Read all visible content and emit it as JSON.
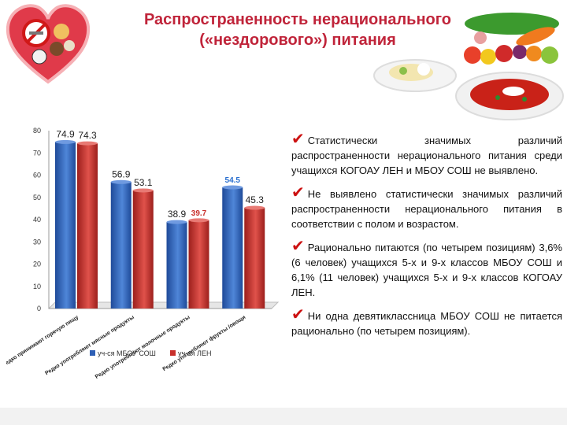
{
  "title": {
    "line1": "Распространенность нерационального",
    "line2": "(«нездорового») питания"
  },
  "colors": {
    "title": "#c0243a",
    "series_blue": "#2e5fb5",
    "series_red": "#c8302c",
    "check": "#cc1111"
  },
  "icons": [
    "heart-food-icon",
    "no-smoking-icon",
    "vegetables-icon",
    "salad-plate-icon",
    "soup-bowl-icon"
  ],
  "bullets": [
    {
      "check": "✔",
      "text": "Статистически значимых различий распространенности нерационального питания среди учащихся КОГОАУ ЛЕН и МБОУ СОШ не выявлено."
    },
    {
      "check": "✔",
      "text": "Не выявлено статистически значимых различий распространенности нерационального питания в соответствии с полом и возрастом."
    },
    {
      "check": "✔",
      "text": "Рационально питаются (по четырем позициям) 3,6% (6 человек) учащихся 5-х и 9-х классов МБОУ СОШ и 6,1% (11 человек) учащихся 5-х и 9-х классов КОГОАУ ЛЕН."
    },
    {
      "check": "✔",
      "text": "Ни одна девятиклассница МБОУ СОШ не питается рационально (по четырем позициям)."
    }
  ],
  "chart_data": {
    "type": "bar",
    "categories": [
      "Редко принимают горячую пищу",
      "Редко употребляют мясные продукты",
      "Редко употребляют молочные продукты",
      "Редко употребляют фрукты /овощи"
    ],
    "series": [
      {
        "name": "уч-ся МБОУ СОШ",
        "values": [
          74.9,
          56.9,
          38.9,
          54.5
        ],
        "labels": [
          "74.9",
          "56.9",
          "38.9",
          "54.5"
        ]
      },
      {
        "name": "уч-ся ЛЕН",
        "values": [
          74.3,
          53.1,
          39.7,
          45.3
        ],
        "labels": [
          "74.3",
          "53.1",
          "39.7",
          "45.3"
        ]
      }
    ],
    "yticks": [
      "0",
      "10",
      "20",
      "30",
      "40",
      "50",
      "60",
      "70",
      "80"
    ],
    "ylim": [
      0,
      80
    ],
    "grid": false,
    "legend_position": "bottom"
  }
}
